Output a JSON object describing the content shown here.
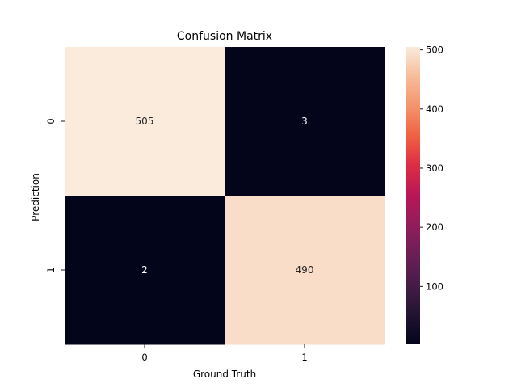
{
  "chart_data": {
    "type": "heatmap",
    "title": "Confusion Matrix",
    "xlabel": "Ground Truth",
    "ylabel": "Prediction",
    "x_categories": [
      "0",
      "1"
    ],
    "y_categories": [
      "0",
      "1"
    ],
    "values": [
      [
        505,
        3
      ],
      [
        2,
        490
      ]
    ],
    "annotations": [
      [
        "505",
        "3"
      ],
      [
        "2",
        "490"
      ]
    ],
    "colormap": "rocket",
    "colorbar": {
      "range": [
        2,
        505
      ],
      "ticks": [
        100,
        200,
        300,
        400,
        500
      ],
      "tick_labels": [
        "100",
        "200",
        "300",
        "400",
        "500"
      ]
    },
    "grid": false
  }
}
